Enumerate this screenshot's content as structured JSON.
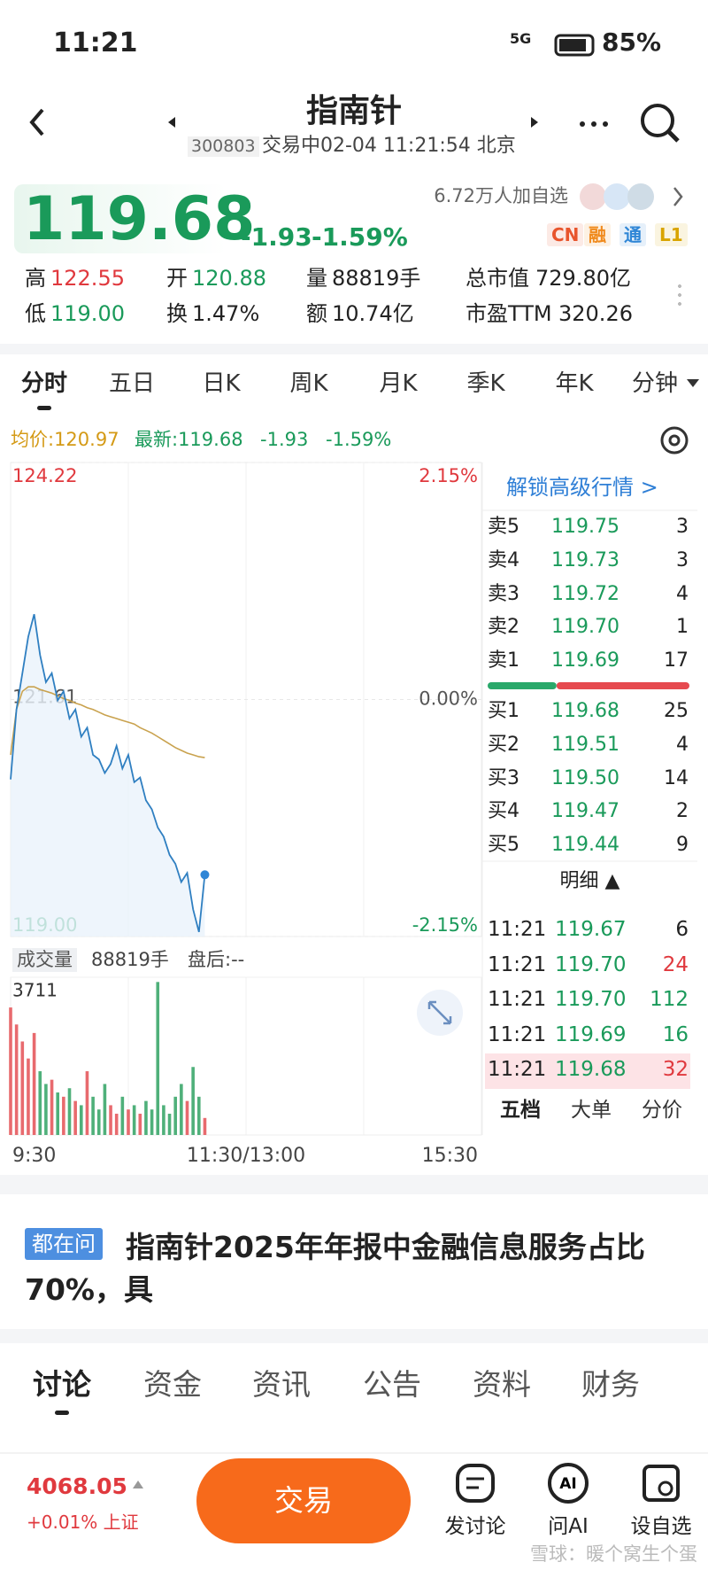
{
  "status_bar": {
    "time": "11:21",
    "network": "5G",
    "battery": "85%"
  },
  "header": {
    "title": "指南针",
    "code": "300803",
    "status": "交易中02-04 11:21:54 北京"
  },
  "quote": {
    "price": "119.68",
    "change": "-1.93",
    "change_pct": "-1.59%",
    "watchers": "6.72万人加自选",
    "tags": [
      {
        "text": "CN",
        "color": "#e8552d"
      },
      {
        "text": "融",
        "color": "#f08a1c"
      },
      {
        "text": "通",
        "color": "#2f86d6"
      },
      {
        "text": "L1",
        "color": "#d9a400"
      }
    ]
  },
  "stats": [
    [
      {
        "label": "高",
        "value": "122.55",
        "color": "#e0393e"
      },
      {
        "label": "开",
        "value": "120.88",
        "color": "#1a9a5a"
      },
      {
        "label": "量",
        "value": "88819手",
        "color": "#222222"
      },
      {
        "label": "总市值",
        "value": "729.80亿",
        "color": "#222222"
      }
    ],
    [
      {
        "label": "低",
        "value": "119.00",
        "color": "#1a9a5a"
      },
      {
        "label": "换",
        "value": "1.47%",
        "color": "#222222"
      },
      {
        "label": "额",
        "value": "10.74亿",
        "color": "#222222"
      },
      {
        "label": "市盈TTM",
        "value": "320.26",
        "color": "#222222"
      }
    ]
  ],
  "chart_tabs": [
    "分时",
    "五日",
    "日K",
    "周K",
    "月K",
    "季K",
    "年K",
    "分钟"
  ],
  "info_line": {
    "avg": "均价:120.97",
    "latest": "最新:119.68",
    "change": "-1.93",
    "pct": "-1.59%"
  },
  "chart_data": {
    "type": "line",
    "xlim": [
      0,
      80
    ],
    "ylim": [
      119,
      124.22
    ],
    "yticks": [
      124.22,
      121.61,
      {
        "value": 119,
        "label": "119.00"
      }
    ],
    "y2lim": [
      -2.15,
      2.15
    ],
    "y2ticks": [
      {
        "value": 2.15,
        "label": "2.15%"
      },
      {
        "value": 0,
        "label": "0.00%"
      },
      {
        "value": -2.15,
        "label": "-2.15%"
      }
    ],
    "series": [
      {
        "color": "#2f7fc1",
        "values": [
          120.73,
          121.5,
          121.9,
          122.3,
          122.55,
          122.1,
          121.8,
          121.9,
          121.6,
          121.7,
          121.4,
          121.5,
          121.2,
          121.3,
          121.0,
          120.95,
          120.8,
          120.9,
          121.1,
          120.85,
          121.0,
          120.7,
          120.75,
          120.5,
          120.4,
          120.2,
          120.1,
          119.9,
          119.8,
          119.6,
          119.7,
          119.3,
          119.05,
          119.68
        ]
      },
      {
        "color": "#c9a24e",
        "values": [
          121.0,
          121.5,
          121.7,
          121.75,
          121.75,
          121.72,
          121.7,
          121.68,
          121.65,
          121.62,
          121.6,
          121.57,
          121.55,
          121.52,
          121.5,
          121.47,
          121.44,
          121.42,
          121.4,
          121.38,
          121.36,
          121.34,
          121.3,
          121.27,
          121.24,
          121.2,
          121.16,
          121.12,
          121.08,
          121.05,
          121.02,
          121.0,
          120.98,
          120.97
        ]
      }
    ],
    "volume": {
      "label": "成交量",
      "total": "88819手",
      "after_hours": "盘后:--",
      "ylim": [
        0,
        3711
      ],
      "yticks": [
        3711
      ],
      "up_color": "#e86a6e",
      "down_color": "#4fb07a",
      "values": [
        3000,
        2600,
        2200,
        1800,
        2400,
        1500,
        1200,
        1300,
        1000,
        900,
        1100,
        800,
        700,
        1500,
        900,
        600,
        1200,
        700,
        500,
        900,
        600,
        700,
        500,
        800,
        600,
        3600,
        700,
        500,
        900,
        1200,
        800,
        1600,
        900,
        400
      ]
    },
    "x_labels": [
      "9:30",
      "11:30/13:00",
      "15:30"
    ]
  },
  "order_book": {
    "unlock": "解锁高级行情 >",
    "sells": [
      [
        "卖5",
        "119.75",
        3
      ],
      [
        "卖4",
        "119.73",
        3
      ],
      [
        "卖3",
        "119.72",
        4
      ],
      [
        "卖2",
        "119.70",
        1
      ],
      [
        "卖1",
        "119.69",
        17
      ]
    ],
    "buys": [
      [
        "买1",
        "119.68",
        25
      ],
      [
        "买2",
        "119.51",
        4
      ],
      [
        "买3",
        "119.50",
        14
      ],
      [
        "买4",
        "119.47",
        2
      ],
      [
        "买5",
        "119.44",
        9
      ]
    ],
    "detail_title": "明细 ▲",
    "trades": [
      {
        "time": "11:21",
        "price": "119.67",
        "volume": 6,
        "color": "#222222"
      },
      {
        "time": "11:21",
        "price": "119.70",
        "volume": 24,
        "color": "#e0393e"
      },
      {
        "time": "11:21",
        "price": "119.70",
        "volume": 112,
        "color": "#1a9a5a"
      },
      {
        "time": "11:21",
        "price": "119.69",
        "volume": 16,
        "color": "#1a9a5a"
      },
      {
        "time": "11:21",
        "price": "119.68",
        "volume": 32,
        "color": "#e0393e"
      }
    ],
    "tabs": [
      "五档",
      "大单",
      "分价"
    ]
  },
  "news": {
    "tag": "都在问",
    "headline": "指南针2025年年报中金融信息服务占比70%，具"
  },
  "section_tabs": [
    "讨论",
    "资金",
    "资讯",
    "公告",
    "资料",
    "财务"
  ],
  "bottom_bar": {
    "index_value": "4068.05",
    "index_change": "+0.01% 上证",
    "trade": "交易",
    "actions": [
      "发讨论",
      "问AI",
      "设自选"
    ],
    "watermark": "雪球：暖个窝生个蛋"
  }
}
